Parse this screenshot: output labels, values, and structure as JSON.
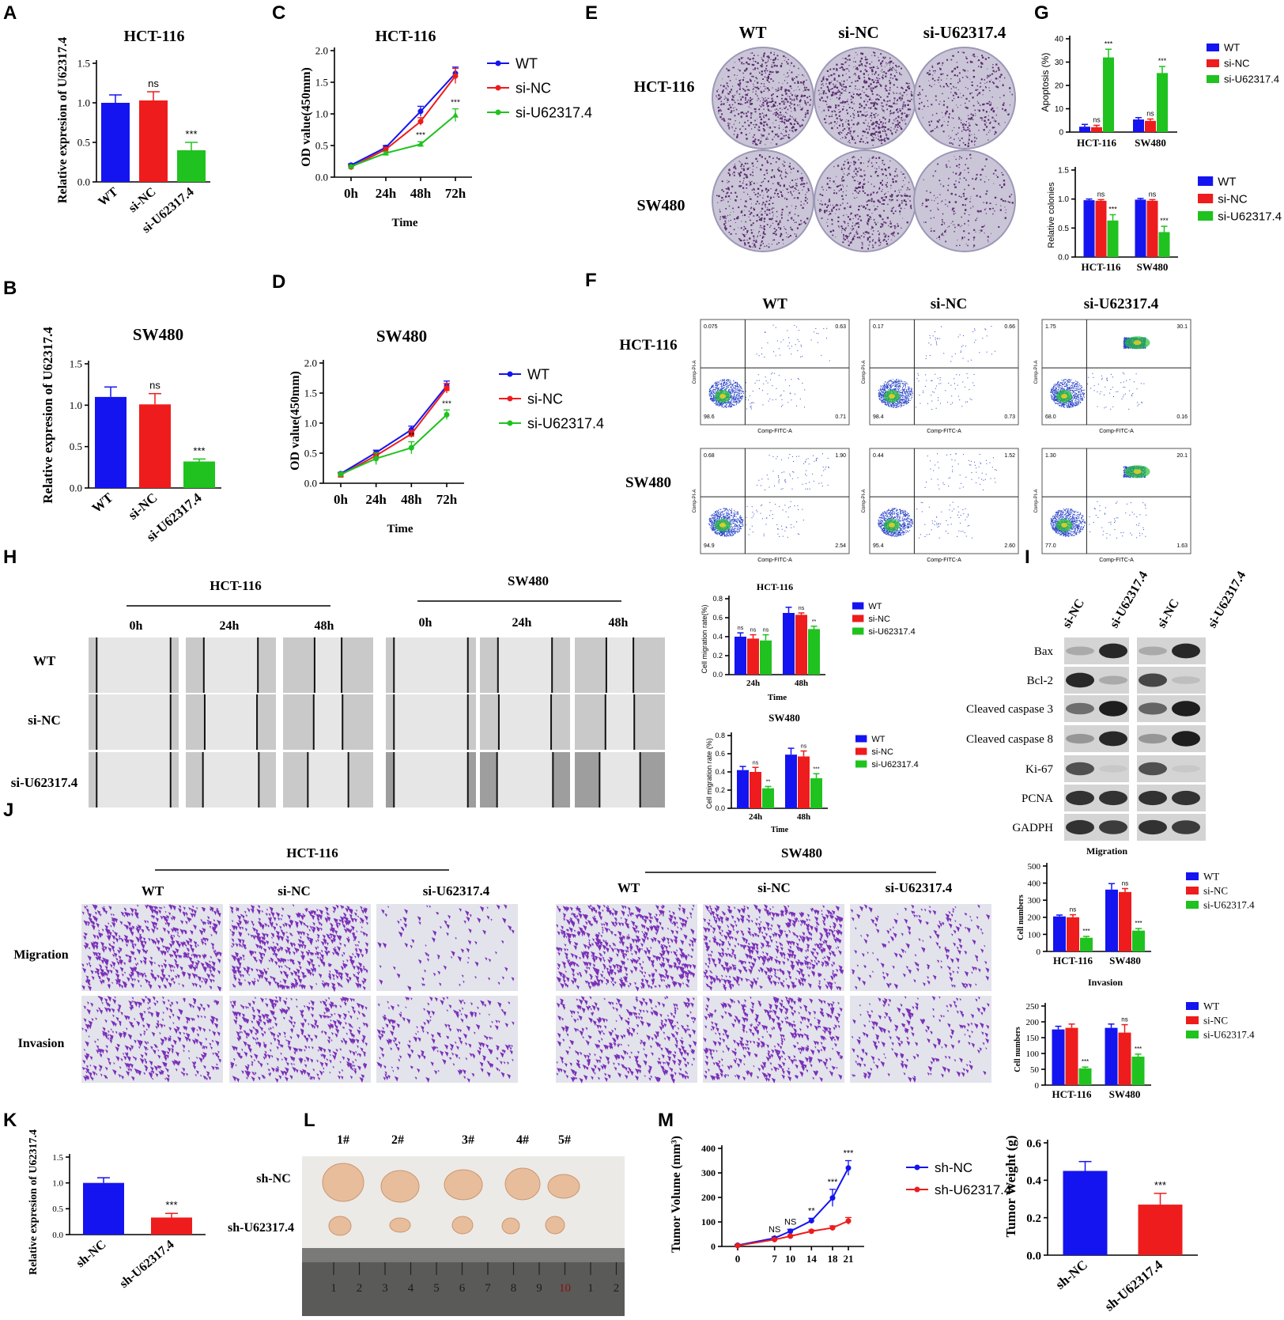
{
  "colors": {
    "wt": "#1414f0",
    "nc": "#ee1c1c",
    "si": "#1fc21f",
    "black": "#000000"
  },
  "panels": {
    "A": {
      "letter": "A",
      "title": "HCT-116",
      "ylabel": "Relative expresion of U62317.4"
    },
    "B": {
      "letter": "B",
      "title": "SW480",
      "ylabel": "Relative expresion of U62317.4"
    },
    "C": {
      "letter": "C",
      "title": "HCT-116",
      "ylabel": "OD value(450mm)",
      "xlabel": "Time"
    },
    "D": {
      "letter": "D",
      "title": "SW480",
      "ylabel": "OD value(450mm)",
      "xlabel": "Time"
    },
    "E": {
      "letter": "E",
      "cols": [
        "WT",
        "si-NC",
        "si-U62317.4"
      ],
      "rows": [
        "HCT-116",
        "SW480"
      ]
    },
    "F": {
      "letter": "F",
      "cols": [
        "WT",
        "si-NC",
        "si-U62317.4"
      ],
      "rows": [
        "HCT-116",
        "SW480"
      ],
      "xaxis": "Comp-FITC-A",
      "yaxis": "Comp-PI-A",
      "quadrants": [
        [
          {
            "q1": "0.075",
            "q2": "0.63",
            "q3": "0.71",
            "q4": "98.6"
          },
          {
            "q1": "0.17",
            "q2": "0.66",
            "q3": "0.73",
            "q4": "98.4"
          },
          {
            "q1": "1.75",
            "q2": "30.1",
            "q3": "0.16",
            "q4": "68.0"
          }
        ],
        [
          {
            "q1": "0.68",
            "q2": "1.90",
            "q3": "2.54",
            "q4": "94.9"
          },
          {
            "q1": "0.44",
            "q2": "1.52",
            "q3": "2.60",
            "q4": "95.4"
          },
          {
            "q1": "1.30",
            "q2": "20.1",
            "q3": "1.63",
            "q4": "77.0"
          }
        ]
      ]
    },
    "G": {
      "letter": "G",
      "top_ylabel": "Apoptosis (%)",
      "bottom_ylabel": "Relative colonies"
    },
    "H": {
      "letter": "H",
      "groups": [
        "HCT-116",
        "SW480"
      ],
      "times": [
        "0h",
        "24h",
        "48h"
      ],
      "rows": [
        "WT",
        "si-NC",
        "si-U62317.4"
      ],
      "chart1_title": "HCT-116",
      "chart2_title": "SW480",
      "chart1_ylabel": "Cell migration rate(%)",
      "chart2_ylabel": "Cell migration rate (%)",
      "xlabel": "Time"
    },
    "I": {
      "letter": "I",
      "lanes": [
        "si-NC",
        "si-U62317.4",
        "si-NC",
        "si-U62317.4"
      ],
      "proteins": [
        "Bax",
        "Bcl-2",
        "Cleaved caspase 3",
        "Cleaved caspase 8",
        "Ki-67",
        "PCNA",
        "GADPH"
      ]
    },
    "J": {
      "letter": "J",
      "groups": [
        "HCT-116",
        "SW480"
      ],
      "cols": [
        "WT",
        "si-NC",
        "si-U62317.4"
      ],
      "rows": [
        "Migration",
        "Invasion"
      ],
      "chart1_title": "Migration",
      "chart2_title": "Invasion",
      "ylabel": "Cell numbers"
    },
    "K": {
      "letter": "K",
      "ylabel": "Relative expresion of U62317.4"
    },
    "L": {
      "letter": "L",
      "cols": [
        "1#",
        "2#",
        "3#",
        "4#",
        "5#"
      ],
      "rows": [
        "sh-NC",
        "sh-U62317.4"
      ],
      "ruler": [
        "1",
        "2",
        "3",
        "4",
        "5",
        "6",
        "7",
        "8",
        "9",
        "10",
        "1",
        "2"
      ]
    },
    "M": {
      "letter": "M",
      "ylabel": "Tumor Volume (mm³)",
      "ylabel2": "Tumor Weight (g)"
    }
  },
  "chart_data": [
    {
      "id": "A",
      "type": "bar",
      "categories": [
        "WT",
        "si-NC",
        "si-U62317.4"
      ],
      "values": [
        1.0,
        1.03,
        0.4
      ],
      "errors": [
        0.1,
        0.11,
        0.1
      ],
      "annotations": [
        "",
        "ns",
        "***"
      ],
      "ylim": [
        0,
        1.5
      ],
      "yticks": [
        "0.0",
        "0.5",
        "1.0",
        "1.5"
      ],
      "title": "HCT-116",
      "ylabel": "Relative expresion of U62317.4"
    },
    {
      "id": "B",
      "type": "bar",
      "categories": [
        "WT",
        "si-NC",
        "si-U62317.4"
      ],
      "values": [
        1.1,
        1.01,
        0.32
      ],
      "errors": [
        0.12,
        0.13,
        0.03
      ],
      "annotations": [
        "",
        "ns",
        "***"
      ],
      "ylim": [
        0,
        1.5
      ],
      "yticks": [
        "0.0",
        "0.5",
        "1.0",
        "1.5"
      ],
      "title": "SW480",
      "ylabel": "Relative expresion of U62317.4"
    },
    {
      "id": "C",
      "type": "line",
      "categories": [
        "0h",
        "24h",
        "48h",
        "72h"
      ],
      "ylim": [
        0,
        2.0
      ],
      "yticks": [
        "0.0",
        "0.5",
        "1.0",
        "1.5",
        "2.0"
      ],
      "title": "HCT-116",
      "xlabel": "Time",
      "ylabel": "OD value(450mm)",
      "series": [
        {
          "name": "WT",
          "values": [
            0.19,
            0.47,
            1.04,
            1.64
          ],
          "errors": [
            0.02,
            0.03,
            0.08,
            0.1
          ]
        },
        {
          "name": "si-NC",
          "values": [
            0.16,
            0.44,
            0.88,
            1.6
          ],
          "errors": [
            0.02,
            0.03,
            0.06,
            0.12
          ]
        },
        {
          "name": "si-U62317.4",
          "values": [
            0.17,
            0.38,
            0.52,
            0.98
          ],
          "errors": [
            0.02,
            0.02,
            0.04,
            0.1
          ]
        }
      ],
      "annotations": [
        "",
        "",
        "***",
        "***"
      ]
    },
    {
      "id": "D",
      "type": "line",
      "categories": [
        "0h",
        "24h",
        "48h",
        "72h"
      ],
      "ylim": [
        0,
        2.0
      ],
      "yticks": [
        "0.0",
        "0.5",
        "1.0",
        "1.5",
        "2.0"
      ],
      "title": "SW480",
      "xlabel": "Time",
      "ylabel": "OD value(450mm)",
      "series": [
        {
          "name": "WT",
          "values": [
            0.16,
            0.51,
            0.89,
            1.62
          ],
          "errors": [
            0.02,
            0.04,
            0.06,
            0.08
          ]
        },
        {
          "name": "si-NC",
          "values": [
            0.14,
            0.46,
            0.82,
            1.58
          ],
          "errors": [
            0.02,
            0.04,
            0.06,
            0.08
          ]
        },
        {
          "name": "si-U62317.4",
          "values": [
            0.15,
            0.41,
            0.59,
            1.14
          ],
          "errors": [
            0.02,
            0.1,
            0.1,
            0.08
          ]
        }
      ],
      "annotations": [
        "",
        "",
        "**",
        "***"
      ]
    },
    {
      "id": "G-top",
      "type": "bar",
      "categories": [
        "HCT-116",
        "SW480"
      ],
      "ylim": [
        0,
        40
      ],
      "yticks": [
        "0",
        "10",
        "20",
        "30",
        "40"
      ],
      "ylabel": "Apoptosis (%)",
      "series": [
        {
          "name": "WT",
          "values": [
            2.3,
            5.4
          ],
          "errors": [
            1,
            0.8
          ]
        },
        {
          "name": "si-NC",
          "values": [
            2.1,
            4.8
          ],
          "errors": [
            0.8,
            0.8
          ]
        },
        {
          "name": "si-U62317.4",
          "values": [
            32.0,
            25.3
          ],
          "errors": [
            3.5,
            2.8
          ]
        }
      ],
      "annotations": [
        [
          "ns",
          "***"
        ],
        [
          "ns",
          "***"
        ]
      ]
    },
    {
      "id": "G-bottom",
      "type": "bar",
      "categories": [
        "HCT-116",
        "SW480"
      ],
      "ylim": [
        0,
        1.5
      ],
      "yticks": [
        "0.0",
        "0.5",
        "1.0",
        "1.5"
      ],
      "ylabel": "Relative colonies",
      "series": [
        {
          "name": "WT",
          "values": [
            0.98,
            0.99
          ],
          "errors": [
            0.02,
            0.02
          ]
        },
        {
          "name": "si-NC",
          "values": [
            0.97,
            0.97
          ],
          "errors": [
            0.02,
            0.02
          ]
        },
        {
          "name": "si-U62317.4",
          "values": [
            0.63,
            0.43
          ],
          "errors": [
            0.1,
            0.1
          ]
        }
      ],
      "annotations": [
        [
          "ns",
          "***"
        ],
        [
          "ns",
          "***"
        ]
      ]
    },
    {
      "id": "H-HCT-116",
      "type": "bar",
      "categories": [
        "24h",
        "48h"
      ],
      "ylim": [
        0,
        0.8
      ],
      "yticks": [
        "0.0",
        "0.2",
        "0.4",
        "0.6",
        "0.8"
      ],
      "title": "HCT-116",
      "xlabel": "Time",
      "ylabel": "Cell migration rate(%)",
      "series": [
        {
          "name": "WT",
          "values": [
            0.4,
            0.65
          ],
          "errors": [
            0.04,
            0.06
          ]
        },
        {
          "name": "si-NC",
          "values": [
            0.38,
            0.63
          ],
          "errors": [
            0.04,
            0.02
          ]
        },
        {
          "name": "si-U62317.4",
          "values": [
            0.36,
            0.48
          ],
          "errors": [
            0.06,
            0.03
          ]
        }
      ],
      "annotations": [
        [
          "ns",
          "ns",
          "ns"
        ],
        [
          "",
          "ns",
          "**"
        ]
      ]
    },
    {
      "id": "H-SW480",
      "type": "bar",
      "categories": [
        "24h",
        "48h"
      ],
      "ylim": [
        0,
        0.8
      ],
      "yticks": [
        "0.0",
        "0.2",
        "0.4",
        "0.6",
        "0.8"
      ],
      "title": "SW480",
      "xlabel": "Time",
      "ylabel": "Cell migration rate (%)",
      "series": [
        {
          "name": "WT",
          "values": [
            0.42,
            0.59
          ],
          "errors": [
            0.04,
            0.07
          ]
        },
        {
          "name": "si-NC",
          "values": [
            0.4,
            0.57
          ],
          "errors": [
            0.05,
            0.06
          ]
        },
        {
          "name": "si-U62317.4",
          "values": [
            0.22,
            0.33
          ],
          "errors": [
            0.02,
            0.05
          ]
        }
      ],
      "annotations": [
        [
          "",
          "ns",
          "**"
        ],
        [
          "",
          "ns",
          "***"
        ]
      ]
    },
    {
      "id": "J-Migration",
      "type": "bar",
      "categories": [
        "HCT-116",
        "SW480"
      ],
      "ylim": [
        0,
        500
      ],
      "yticks": [
        "0",
        "100",
        "200",
        "300",
        "400",
        "500"
      ],
      "title": "Migration",
      "ylabel": "Cell numbers",
      "series": [
        {
          "name": "WT",
          "values": [
            205,
            362
          ],
          "errors": [
            8,
            35
          ]
        },
        {
          "name": "si-NC",
          "values": [
            200,
            348
          ],
          "errors": [
            15,
            20
          ]
        },
        {
          "name": "si-U62317.4",
          "values": [
            80,
            122
          ],
          "errors": [
            8,
            12
          ]
        }
      ],
      "annotations": [
        [
          "ns",
          "***"
        ],
        [
          "ns",
          "***"
        ]
      ]
    },
    {
      "id": "J-Invasion",
      "type": "bar",
      "categories": [
        "HCT-116",
        "SW480"
      ],
      "ylim": [
        0,
        250
      ],
      "yticks": [
        "0",
        "50",
        "100",
        "150",
        "200",
        "250"
      ],
      "title": "Invasion",
      "ylabel": "Cell numbers",
      "series": [
        {
          "name": "WT",
          "values": [
            176,
            181
          ],
          "errors": [
            10,
            12
          ]
        },
        {
          "name": "si-NC",
          "values": [
            181,
            166
          ],
          "errors": [
            12,
            25
          ]
        },
        {
          "name": "si-U62317.4",
          "values": [
            53,
            90
          ],
          "errors": [
            4,
            8
          ]
        }
      ],
      "annotations": [
        [
          "",
          "***"
        ],
        [
          "ns",
          "***"
        ]
      ]
    },
    {
      "id": "K",
      "type": "bar",
      "categories": [
        "sh-NC",
        "sh-U62317.4"
      ],
      "values": [
        1.0,
        0.33
      ],
      "errors": [
        0.1,
        0.08
      ],
      "annotations": [
        "",
        "***"
      ],
      "ylim": [
        0,
        1.5
      ],
      "yticks": [
        "0.0",
        "0.5",
        "1.0",
        "1.5"
      ],
      "ylabel": "Relative expresion of U62317.4"
    },
    {
      "id": "M-volume",
      "type": "line",
      "x": [
        0,
        7,
        10,
        14,
        18,
        21
      ],
      "ylim": [
        0,
        400
      ],
      "yticks": [
        "0",
        "100",
        "200",
        "300",
        "400"
      ],
      "xticks": [
        "0",
        "7",
        "10",
        "14",
        "18",
        "21"
      ],
      "ylabel": "Tumor Volume (mm³)",
      "series": [
        {
          "name": "sh-NC",
          "values": [
            5,
            34,
            62,
            105,
            198,
            320
          ],
          "errors": [
            3,
            5,
            8,
            10,
            35,
            30
          ]
        },
        {
          "name": "sh-U62317.4",
          "values": [
            3,
            28,
            42,
            62,
            76,
            104
          ],
          "errors": [
            2,
            4,
            5,
            5,
            8,
            14
          ]
        }
      ],
      "annotations": [
        "",
        "NS",
        "NS",
        "**",
        "***",
        "***"
      ]
    },
    {
      "id": "M-weight",
      "type": "bar",
      "categories": [
        "sh-NC",
        "sh-U62317.4"
      ],
      "values": [
        0.45,
        0.27
      ],
      "errors": [
        0.05,
        0.06
      ],
      "annotations": [
        "",
        "***"
      ],
      "ylim": [
        0,
        0.6
      ],
      "yticks": [
        "0.0",
        "0.2",
        "0.4",
        "0.6"
      ],
      "ylabel": "Tumor Weight (g)"
    }
  ]
}
